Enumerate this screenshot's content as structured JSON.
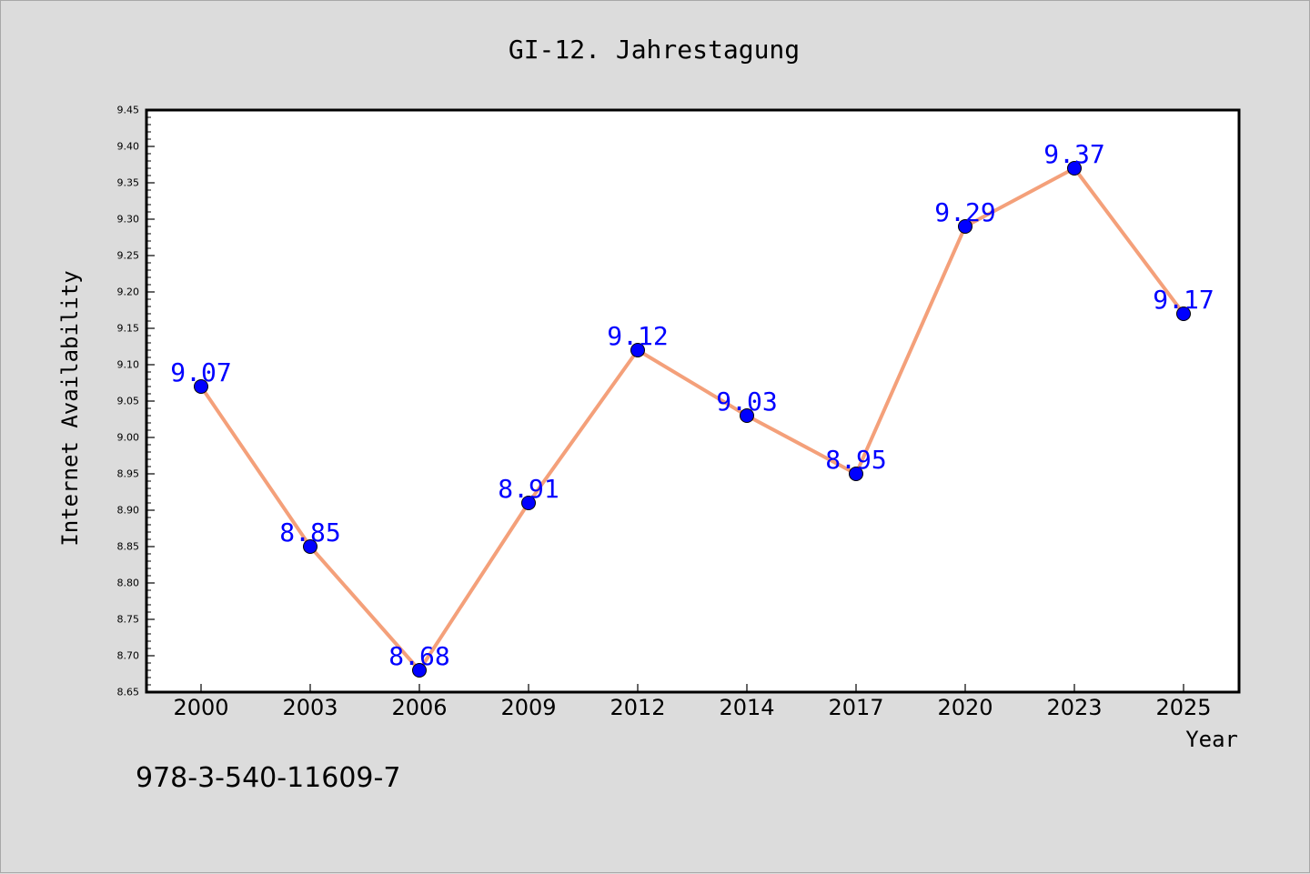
{
  "chart_data": {
    "type": "line",
    "title": "GI-12. Jahrestagung",
    "xlabel": "Year",
    "ylabel": "Internet Availability",
    "categories": [
      "2000",
      "2003",
      "2006",
      "2009",
      "2012",
      "2014",
      "2017",
      "2020",
      "2023",
      "2025"
    ],
    "series": [
      {
        "values": [
          9.07,
          8.85,
          8.68,
          8.91,
          9.12,
          9.03,
          8.95,
          9.29,
          9.37,
          9.17
        ],
        "labels": [
          "9.07",
          "8.85",
          "8.68",
          "8.91",
          "9.12",
          "9.03",
          "8.95",
          "9.29",
          "9.37",
          "9.17"
        ],
        "line_color": "#f4a07a",
        "marker_color": "#0000ff"
      }
    ],
    "ylim": [
      8.65,
      9.45
    ],
    "y_ticks": [
      "8.65",
      "8.70",
      "8.75",
      "8.80",
      "8.85",
      "8.90",
      "8.95",
      "9.00",
      "9.05",
      "9.10",
      "9.15",
      "9.20",
      "9.25",
      "9.30",
      "9.35",
      "9.40",
      "9.45"
    ],
    "grid": false,
    "data_label_color": "#0000ff"
  },
  "footer": {
    "isbn": "978-3-540-11609-7"
  }
}
